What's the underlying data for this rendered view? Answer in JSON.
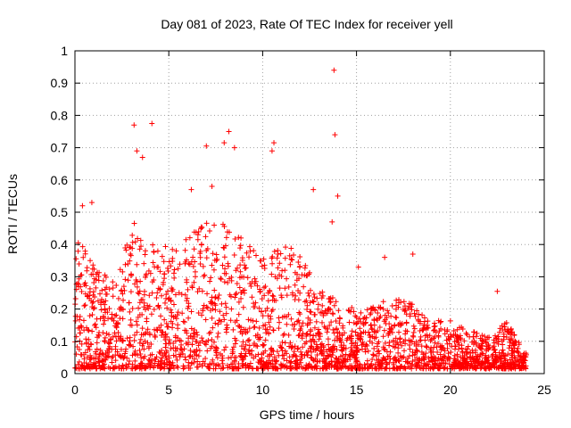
{
  "chart_data": {
    "type": "scatter",
    "title": "Day 081 of 2023, Rate Of TEC Index for receiver yell",
    "xlabel": "GPS time / hours",
    "ylabel": "ROTI / TECUs",
    "xlim": [
      0,
      25
    ],
    "ylim": [
      0,
      1
    ],
    "x_ticks": [
      0,
      5,
      10,
      15,
      20,
      25
    ],
    "y_ticks": [
      0,
      0.1,
      0.2,
      0.3,
      0.4,
      0.5,
      0.6,
      0.7,
      0.8,
      0.9,
      1
    ],
    "x_tick_labels": [
      "0",
      "5",
      "10",
      "15",
      "20",
      "25"
    ],
    "y_tick_labels": [
      "0",
      "0.1",
      "0.2",
      "0.3",
      "0.4",
      "0.5",
      "0.6",
      "0.7",
      "0.8",
      "0.9",
      "1"
    ],
    "grid": true,
    "marker": "+",
    "marker_color": "#ff0000",
    "series": [
      {
        "name": "ROTI",
        "notable_points": [
          {
            "x": 3.15,
            "y": 0.77
          },
          {
            "x": 4.1,
            "y": 0.775
          },
          {
            "x": 3.3,
            "y": 0.69
          },
          {
            "x": 3.6,
            "y": 0.67
          },
          {
            "x": 7.0,
            "y": 0.705
          },
          {
            "x": 7.95,
            "y": 0.715
          },
          {
            "x": 8.2,
            "y": 0.75
          },
          {
            "x": 8.5,
            "y": 0.7
          },
          {
            "x": 10.6,
            "y": 0.715
          },
          {
            "x": 10.5,
            "y": 0.69
          },
          {
            "x": 12.7,
            "y": 0.57
          },
          {
            "x": 13.8,
            "y": 0.94
          },
          {
            "x": 13.85,
            "y": 0.74
          },
          {
            "x": 14.0,
            "y": 0.55
          },
          {
            "x": 13.7,
            "y": 0.47
          },
          {
            "x": 15.1,
            "y": 0.33
          },
          {
            "x": 16.5,
            "y": 0.36
          },
          {
            "x": 18.0,
            "y": 0.37
          },
          {
            "x": 22.5,
            "y": 0.255
          },
          {
            "x": 0.4,
            "y": 0.52
          },
          {
            "x": 0.9,
            "y": 0.53
          },
          {
            "x": 6.2,
            "y": 0.57
          },
          {
            "x": 7.3,
            "y": 0.58
          }
        ],
        "envelope": [
          {
            "hour": 0,
            "typical_max": 0.45
          },
          {
            "hour": 1,
            "typical_max": 0.32
          },
          {
            "hour": 2,
            "typical_max": 0.28
          },
          {
            "hour": 3,
            "typical_max": 0.5
          },
          {
            "hour": 4,
            "typical_max": 0.4
          },
          {
            "hour": 5,
            "typical_max": 0.38
          },
          {
            "hour": 6,
            "typical_max": 0.45
          },
          {
            "hour": 7,
            "typical_max": 0.48
          },
          {
            "hour": 8,
            "typical_max": 0.45
          },
          {
            "hour": 9,
            "typical_max": 0.4
          },
          {
            "hour": 10,
            "typical_max": 0.35
          },
          {
            "hour": 11,
            "typical_max": 0.4
          },
          {
            "hour": 12,
            "typical_max": 0.35
          },
          {
            "hour": 13,
            "typical_max": 0.25
          },
          {
            "hour": 14,
            "typical_max": 0.22
          },
          {
            "hour": 15,
            "typical_max": 0.18
          },
          {
            "hour": 16,
            "typical_max": 0.2
          },
          {
            "hour": 17,
            "typical_max": 0.22
          },
          {
            "hour": 18,
            "typical_max": 0.2
          },
          {
            "hour": 19,
            "typical_max": 0.15
          },
          {
            "hour": 20,
            "typical_max": 0.15
          },
          {
            "hour": 21,
            "typical_max": 0.12
          },
          {
            "hour": 22,
            "typical_max": 0.1
          },
          {
            "hour": 23,
            "typical_max": 0.15
          },
          {
            "hour": 24,
            "typical_max": 0.05
          }
        ]
      }
    ]
  }
}
